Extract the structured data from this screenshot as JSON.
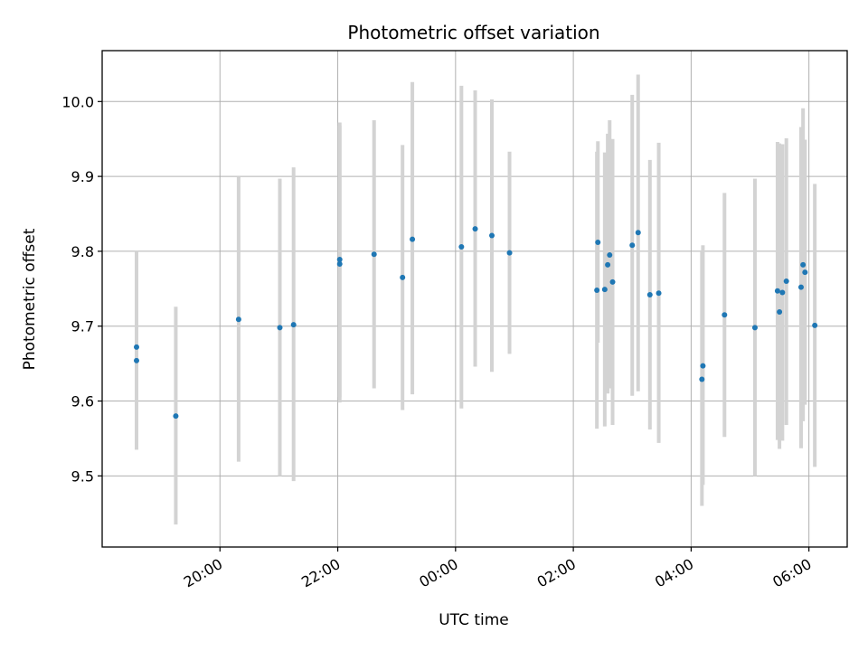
{
  "chart_data": {
    "type": "scatter",
    "title": "Photometric offset variation",
    "xlabel": "UTC time",
    "ylabel": "Photometric offset",
    "x_is_time": true,
    "xlim": [
      "18:00",
      "06:39"
    ],
    "ylim": [
      9.405,
      10.068
    ],
    "x_ticks": [
      "20:00",
      "22:00",
      "00:00",
      "02:00",
      "04:00",
      "06:00"
    ],
    "y_ticks": [
      "9.5",
      "9.6",
      "9.7",
      "9.8",
      "9.9",
      "10.0"
    ],
    "grid": true,
    "marker_color": "#1f77b4",
    "errorbar_color": "#d3d3d3",
    "points": [
      {
        "t": "18:35",
        "y": 9.672,
        "lo": 9.545,
        "hi": 9.8
      },
      {
        "t": "18:35",
        "y": 9.654,
        "lo": 9.535,
        "hi": 9.775
      },
      {
        "t": "19:15",
        "y": 9.58,
        "lo": 9.435,
        "hi": 9.726
      },
      {
        "t": "20:19",
        "y": 9.709,
        "lo": 9.519,
        "hi": 9.9
      },
      {
        "t": "21:01",
        "y": 9.698,
        "lo": 9.5,
        "hi": 9.897
      },
      {
        "t": "21:15",
        "y": 9.702,
        "lo": 9.493,
        "hi": 9.912
      },
      {
        "t": "22:02",
        "y": 9.783,
        "lo": 9.598,
        "hi": 9.968
      },
      {
        "t": "22:02",
        "y": 9.789,
        "lo": 9.605,
        "hi": 9.972
      },
      {
        "t": "22:37",
        "y": 9.796,
        "lo": 9.617,
        "hi": 9.975
      },
      {
        "t": "23:06",
        "y": 9.765,
        "lo": 9.588,
        "hi": 9.942
      },
      {
        "t": "23:16",
        "y": 9.816,
        "lo": 9.609,
        "hi": 10.026
      },
      {
        "t": "00:06",
        "y": 9.806,
        "lo": 9.59,
        "hi": 10.021
      },
      {
        "t": "00:20",
        "y": 9.83,
        "lo": 9.646,
        "hi": 10.015
      },
      {
        "t": "00:37",
        "y": 9.821,
        "lo": 9.639,
        "hi": 10.003
      },
      {
        "t": "00:55",
        "y": 9.798,
        "lo": 9.663,
        "hi": 9.933
      },
      {
        "t": "02:24",
        "y": 9.748,
        "lo": 9.563,
        "hi": 9.933
      },
      {
        "t": "02:25",
        "y": 9.812,
        "lo": 9.678,
        "hi": 9.947
      },
      {
        "t": "02:32",
        "y": 9.749,
        "lo": 9.566,
        "hi": 9.932
      },
      {
        "t": "02:35",
        "y": 9.782,
        "lo": 9.61,
        "hi": 9.957
      },
      {
        "t": "02:37",
        "y": 9.795,
        "lo": 9.617,
        "hi": 9.975
      },
      {
        "t": "02:40",
        "y": 9.759,
        "lo": 9.568,
        "hi": 9.95
      },
      {
        "t": "03:00",
        "y": 9.808,
        "lo": 9.607,
        "hi": 10.009
      },
      {
        "t": "03:06",
        "y": 9.825,
        "lo": 9.613,
        "hi": 10.036
      },
      {
        "t": "03:18",
        "y": 9.742,
        "lo": 9.562,
        "hi": 9.922
      },
      {
        "t": "03:27",
        "y": 9.744,
        "lo": 9.544,
        "hi": 9.945
      },
      {
        "t": "04:11",
        "y": 9.629,
        "lo": 9.46,
        "hi": 9.8
      },
      {
        "t": "04:12",
        "y": 9.647,
        "lo": 9.488,
        "hi": 9.808
      },
      {
        "t": "04:34",
        "y": 9.715,
        "lo": 9.552,
        "hi": 9.878
      },
      {
        "t": "05:05",
        "y": 9.698,
        "lo": 9.5,
        "hi": 9.897
      },
      {
        "t": "05:28",
        "y": 9.747,
        "lo": 9.548,
        "hi": 9.946
      },
      {
        "t": "05:30",
        "y": 9.719,
        "lo": 9.536,
        "hi": 9.944
      },
      {
        "t": "05:33",
        "y": 9.745,
        "lo": 9.547,
        "hi": 9.943
      },
      {
        "t": "05:37",
        "y": 9.76,
        "lo": 9.568,
        "hi": 9.951
      },
      {
        "t": "05:52",
        "y": 9.752,
        "lo": 9.537,
        "hi": 9.966
      },
      {
        "t": "05:54",
        "y": 9.782,
        "lo": 9.573,
        "hi": 9.991
      },
      {
        "t": "05:56",
        "y": 9.772,
        "lo": 9.595,
        "hi": 9.949
      },
      {
        "t": "06:06",
        "y": 9.701,
        "lo": 9.512,
        "hi": 9.89
      }
    ]
  }
}
